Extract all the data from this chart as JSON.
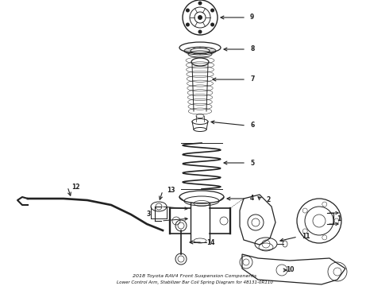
{
  "title_line1": "2018 Toyota RAV4 Front Suspension Components",
  "title_line2": "Lower Control Arm, Stabilizer Bar Coil Spring Diagram for 48131-0R110",
  "bg_color": "#ffffff",
  "line_color": "#222222",
  "text_color": "#111111",
  "figsize": [
    4.9,
    3.6
  ],
  "dpi": 100,
  "font_size": 5.5,
  "lw": 0.7
}
